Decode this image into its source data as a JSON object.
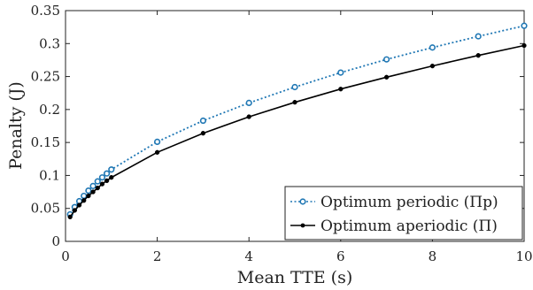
{
  "chart_data": {
    "type": "line",
    "title": "",
    "xlabel": "Mean TTE (s)",
    "ylabel": "Penalty (J)",
    "xlim": [
      0,
      10
    ],
    "ylim": [
      0,
      0.35
    ],
    "xticks": [
      0,
      2,
      4,
      6,
      8,
      10
    ],
    "yticks": [
      0,
      0.05,
      0.1,
      0.15,
      0.2,
      0.25,
      0.3,
      0.35
    ],
    "xtick_labels": [
      "0",
      "2",
      "4",
      "6",
      "8",
      "10"
    ],
    "ytick_labels": [
      "0",
      "0.05",
      "0.1",
      "0.15",
      "0.2",
      "0.25",
      "0.3",
      "0.35"
    ],
    "grid": false,
    "legend_position": "bottom-right",
    "series": [
      {
        "name": "Optimum periodic (Πp)",
        "color": "#1f77b4",
        "line_style": "dotted",
        "marker": "open-circle",
        "x": [
          0.1,
          0.2,
          0.3,
          0.4,
          0.5,
          0.6,
          0.7,
          0.8,
          0.9,
          1,
          2,
          3,
          4,
          5,
          6,
          7,
          8,
          9,
          10
        ],
        "y": [
          0.041,
          0.052,
          0.061,
          0.069,
          0.077,
          0.084,
          0.091,
          0.097,
          0.103,
          0.109,
          0.151,
          0.183,
          0.21,
          0.234,
          0.256,
          0.276,
          0.294,
          0.311,
          0.327
        ]
      },
      {
        "name": "Optimum aperiodic (Π)",
        "color": "#000000",
        "line_style": "solid",
        "marker": "filled-dot",
        "x": [
          0.1,
          0.2,
          0.3,
          0.4,
          0.5,
          0.6,
          0.7,
          0.8,
          0.9,
          1,
          2,
          3,
          4,
          5,
          6,
          7,
          8,
          9,
          10
        ],
        "y": [
          0.037,
          0.047,
          0.055,
          0.062,
          0.069,
          0.075,
          0.081,
          0.087,
          0.092,
          0.097,
          0.135,
          0.164,
          0.189,
          0.211,
          0.231,
          0.249,
          0.266,
          0.282,
          0.297
        ]
      }
    ]
  }
}
